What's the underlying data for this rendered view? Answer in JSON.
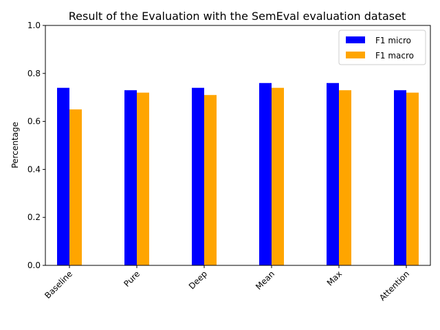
{
  "chart_data": {
    "type": "bar",
    "title": "Result of the Evaluation with the SemEval evaluation dataset",
    "xlabel": "",
    "ylabel": "Percentage",
    "ylim": [
      0,
      1.0
    ],
    "yticks": [
      "0.0",
      "0.2",
      "0.4",
      "0.6",
      "0.8",
      "1.0"
    ],
    "categories": [
      "Baseline",
      "Pure",
      "Deep",
      "Mean",
      "Max",
      "Attention"
    ],
    "series": [
      {
        "name": "F1 micro",
        "color": "#0000ff",
        "values": [
          0.74,
          0.73,
          0.74,
          0.76,
          0.76,
          0.73
        ]
      },
      {
        "name": "F1 macro",
        "color": "#ffa500",
        "values": [
          0.65,
          0.72,
          0.71,
          0.74,
          0.73,
          0.72
        ]
      }
    ],
    "legend_position": "top-right",
    "grid": false
  }
}
